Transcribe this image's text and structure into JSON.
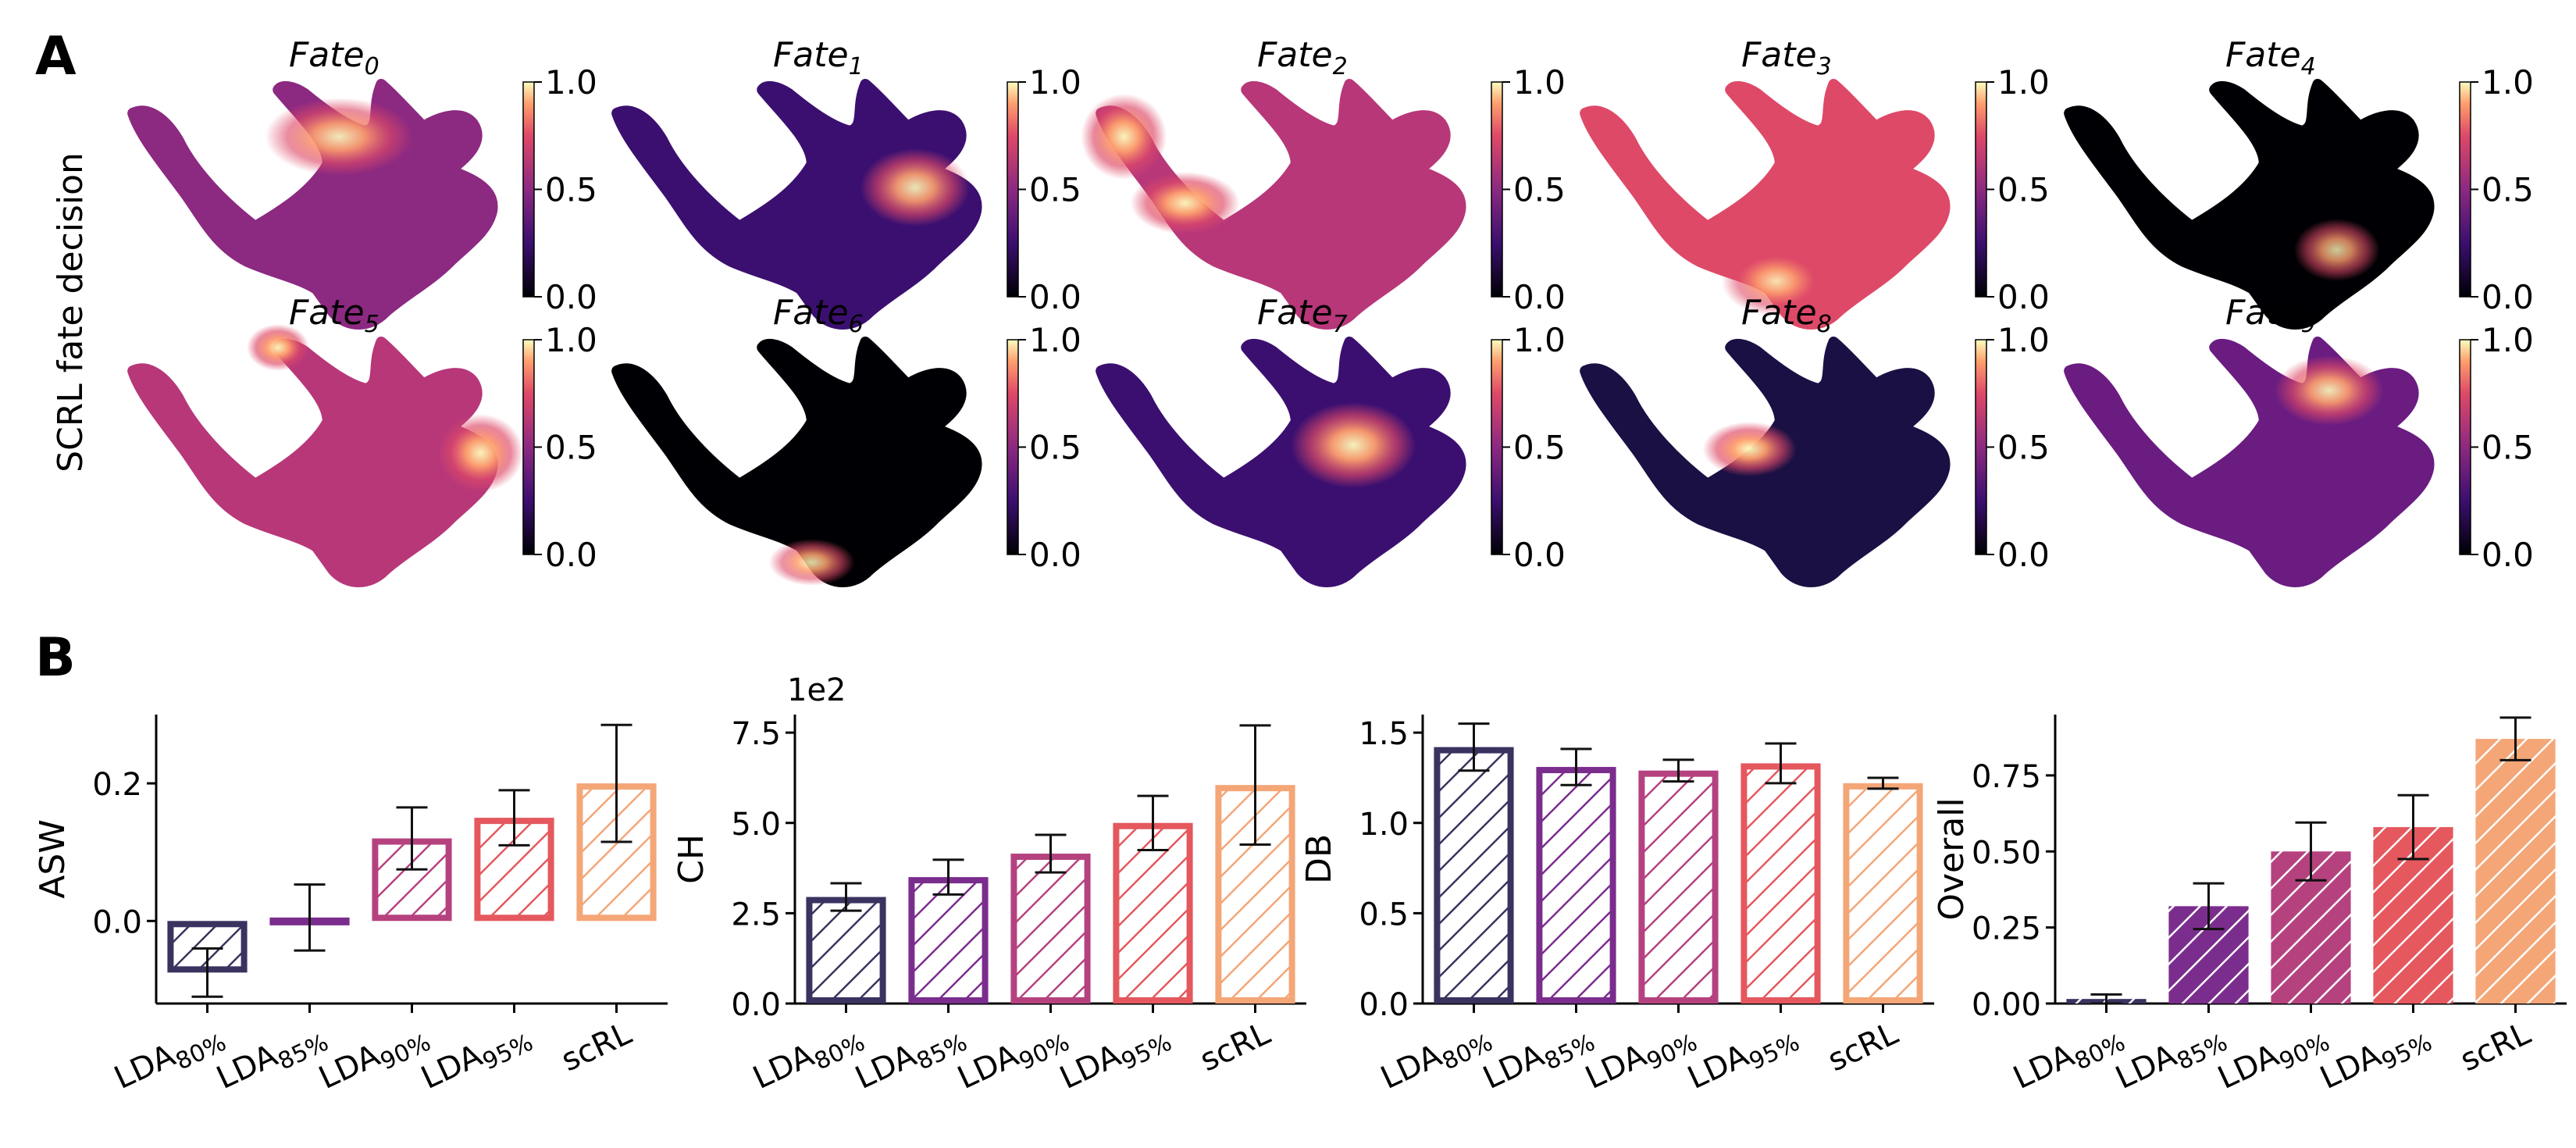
{
  "panel_labels": {
    "a": "A",
    "b": "B"
  },
  "row_label": "SCRL fate decision",
  "fate_panels": [
    {
      "title": "Fate",
      "sub": "0",
      "hotspot": "upper-middle branch",
      "level": 0.9
    },
    {
      "title": "Fate",
      "sub": "1",
      "hotspot": "right hub",
      "level": 0.9
    },
    {
      "title": "Fate",
      "sub": "2",
      "hotspot": "left tail",
      "level": 0.95
    },
    {
      "title": "Fate",
      "sub": "3",
      "hotspot": "lower-middle",
      "level": 0.85
    },
    {
      "title": "Fate",
      "sub": "4",
      "hotspot": "lower-right",
      "level": 0.8
    },
    {
      "title": "Fate",
      "sub": "5",
      "hotspot": "right tip and upper-left tip",
      "level": 0.95
    },
    {
      "title": "Fate",
      "sub": "6",
      "hotspot": "bottom loop",
      "level": 0.85
    },
    {
      "title": "Fate",
      "sub": "7",
      "hotspot": "center-right hub",
      "level": 0.95
    },
    {
      "title": "Fate",
      "sub": "8",
      "hotspot": "left arm",
      "level": 0.95
    },
    {
      "title": "Fate",
      "sub": "9",
      "hotspot": "upper branch",
      "level": 0.9
    }
  ],
  "colorbar_ticks": [
    "1.0",
    "0.5",
    "0.0"
  ],
  "colors": {
    "lda80": "#3a3360",
    "lda85": "#7b2d8e",
    "lda90": "#b5427f",
    "lda95": "#e4585e",
    "scrl": "#f4a677",
    "axis": "#000000",
    "error": "#111111"
  },
  "chart_data": [
    {
      "type": "bar",
      "style": "outline-hatch",
      "title": "",
      "ylabel": "ASW",
      "xlabel": "",
      "multiplier": "",
      "categories": [
        {
          "base": "LDA",
          "sub": "80%"
        },
        {
          "base": "LDA",
          "sub": "85%"
        },
        {
          "base": "LDA",
          "sub": "90%"
        },
        {
          "base": "LDA",
          "sub": "95%"
        },
        {
          "base": "scRL",
          "sub": ""
        }
      ],
      "values": [
        -0.075,
        0.005,
        0.12,
        0.15,
        0.2
      ],
      "errors": [
        0.035,
        0.048,
        0.045,
        0.04,
        0.085
      ],
      "ylim": [
        -0.12,
        0.3
      ],
      "yticks": [
        {
          "v": 0.0,
          "t": "0.0"
        },
        {
          "v": 0.2,
          "t": "0.2"
        }
      ]
    },
    {
      "type": "bar",
      "style": "outline-hatch",
      "title": "",
      "ylabel": "CH",
      "xlabel": "",
      "multiplier": "1e2",
      "categories": [
        {
          "base": "LDA",
          "sub": "80%"
        },
        {
          "base": "LDA",
          "sub": "85%"
        },
        {
          "base": "LDA",
          "sub": "90%"
        },
        {
          "base": "LDA",
          "sub": "95%"
        },
        {
          "base": "scRL",
          "sub": ""
        }
      ],
      "values": [
        2.95,
        3.5,
        4.15,
        5.0,
        6.05
      ],
      "errors": [
        0.38,
        0.48,
        0.52,
        0.75,
        1.65
      ],
      "ylim": [
        0,
        8.0
      ],
      "yticks": [
        {
          "v": 0.0,
          "t": "0.0"
        },
        {
          "v": 2.5,
          "t": "2.5"
        },
        {
          "v": 5.0,
          "t": "5.0"
        },
        {
          "v": 7.5,
          "t": "7.5"
        }
      ]
    },
    {
      "type": "bar",
      "style": "outline-hatch",
      "title": "",
      "ylabel": "DB",
      "xlabel": "",
      "multiplier": "",
      "categories": [
        {
          "base": "LDA",
          "sub": "80%"
        },
        {
          "base": "LDA",
          "sub": "85%"
        },
        {
          "base": "LDA",
          "sub": "90%"
        },
        {
          "base": "LDA",
          "sub": "95%"
        },
        {
          "base": "scRL",
          "sub": ""
        }
      ],
      "values": [
        1.42,
        1.31,
        1.29,
        1.33,
        1.22
      ],
      "errors": [
        0.13,
        0.1,
        0.06,
        0.11,
        0.03
      ],
      "ylim": [
        0,
        1.6
      ],
      "yticks": [
        {
          "v": 0.0,
          "t": "0.0"
        },
        {
          "v": 0.5,
          "t": "0.5"
        },
        {
          "v": 1.0,
          "t": "1.0"
        },
        {
          "v": 1.5,
          "t": "1.5"
        }
      ]
    },
    {
      "type": "bar",
      "style": "filled-hatch",
      "title": "",
      "ylabel": "Overall",
      "xlabel": "",
      "multiplier": "",
      "categories": [
        {
          "base": "LDA",
          "sub": "80%"
        },
        {
          "base": "LDA",
          "sub": "85%"
        },
        {
          "base": "LDA",
          "sub": "90%"
        },
        {
          "base": "LDA",
          "sub": "95%"
        },
        {
          "base": "scRL",
          "sub": ""
        }
      ],
      "values": [
        0.015,
        0.32,
        0.5,
        0.58,
        0.87
      ],
      "errors": [
        0.015,
        0.075,
        0.095,
        0.105,
        0.07
      ],
      "ylim": [
        0,
        0.95
      ],
      "yticks": [
        {
          "v": 0.0,
          "t": "0.00"
        },
        {
          "v": 0.25,
          "t": "0.25"
        },
        {
          "v": 0.5,
          "t": "0.50"
        },
        {
          "v": 0.75,
          "t": "0.75"
        }
      ]
    }
  ]
}
